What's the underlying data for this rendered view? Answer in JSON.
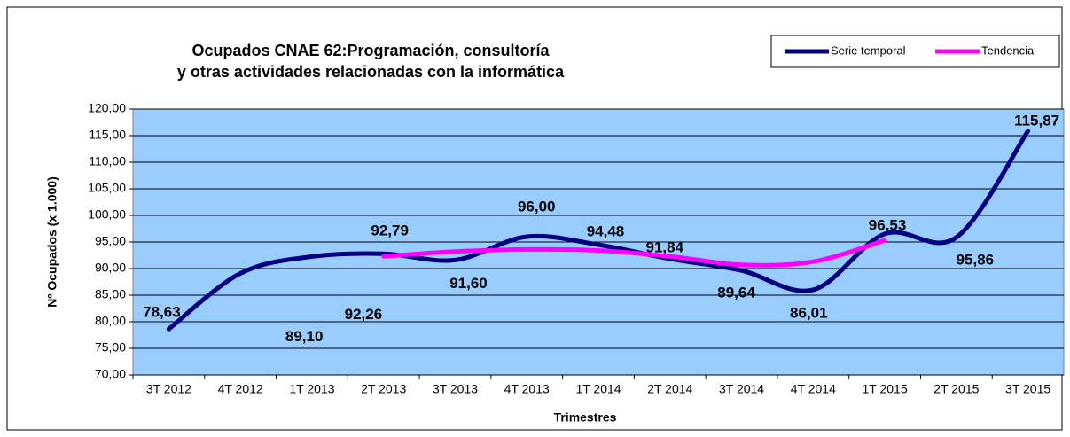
{
  "chart_data": {
    "type": "line",
    "title": [
      "Ocupados CNAE 62:Programación, consultoría",
      "y otras actividades relacionadas con la informática"
    ],
    "x_label": "Trimestres",
    "y_label": "Nº Ocupados  (x 1.000)",
    "categories": [
      "3T 2012",
      "4T 2012",
      "1T 2013",
      "2T 2013",
      "3T 2013",
      "4T 2013",
      "1T 2014",
      "2T 2014",
      "3T 2014",
      "4T 2014",
      "1T 2015",
      "2T 2015",
      "3T 2015"
    ],
    "series": [
      {
        "name": "Serie temporal",
        "color": "#000080",
        "values": [
          78.63,
          89.1,
          92.26,
          92.79,
          91.6,
          96.0,
          94.48,
          91.84,
          89.64,
          86.01,
          96.53,
          95.86,
          115.87
        ],
        "value_labels": [
          "78,63",
          "89,10",
          "92,26",
          "92,79",
          "91,60",
          "96,00",
          "94,48",
          "91,84",
          "89,64",
          "86,01",
          "96,53",
          "95,86",
          "115,87"
        ]
      },
      {
        "name": "Tendencia",
        "color": "#ff00ff",
        "values": [
          null,
          null,
          null,
          92.3,
          93.2,
          93.6,
          93.4,
          92.3,
          90.7,
          91.3,
          95.3,
          null,
          null
        ]
      }
    ],
    "ylim": [
      70,
      120
    ],
    "yticks": [
      {
        "value": 70,
        "label": "70,00"
      },
      {
        "value": 75,
        "label": "75,00"
      },
      {
        "value": 80,
        "label": "80,00"
      },
      {
        "value": 85,
        "label": "85,00"
      },
      {
        "value": 90,
        "label": "90,00"
      },
      {
        "value": 95,
        "label": "95,00"
      },
      {
        "value": 100,
        "label": "100,00"
      },
      {
        "value": 105,
        "label": "105,00"
      },
      {
        "value": 110,
        "label": "110,00"
      },
      {
        "value": 115,
        "label": "115,00"
      },
      {
        "value": 120,
        "label": "120,00"
      }
    ],
    "grid": true,
    "legend": "top-right",
    "plot_background": "#99ccff"
  }
}
